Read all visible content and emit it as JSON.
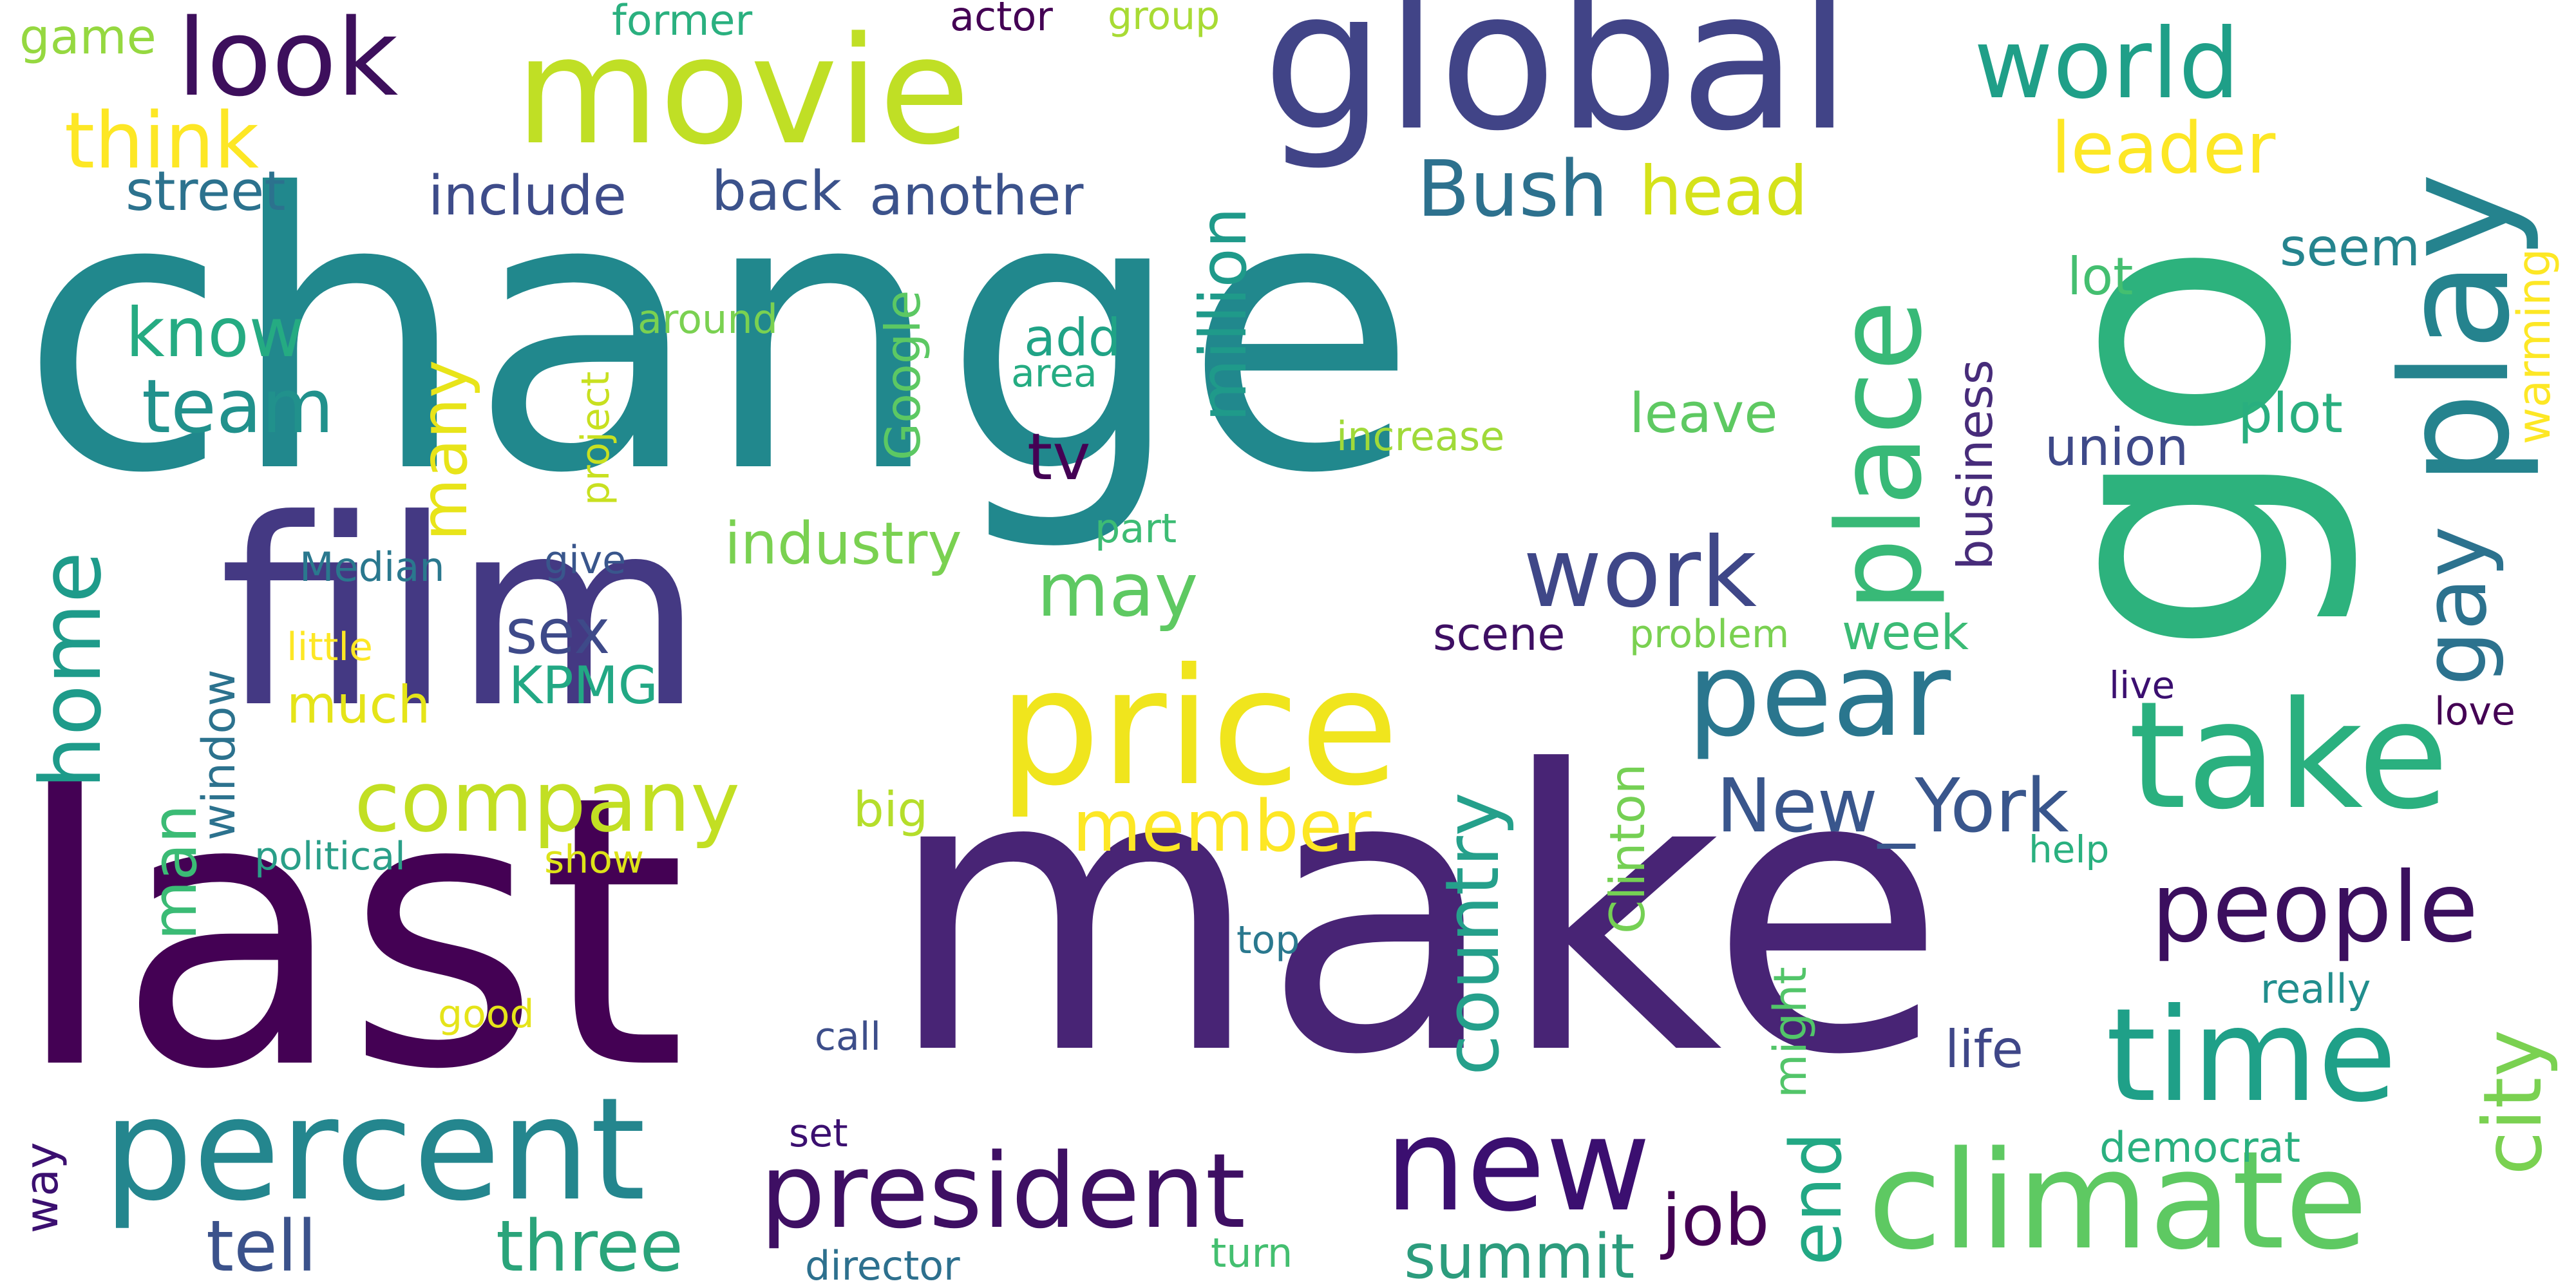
{
  "words": [
    {
      "id": "change",
      "text": "change",
      "color": "#21888d"
    },
    {
      "id": "last",
      "text": "last",
      "color": "#440154"
    },
    {
      "id": "make",
      "text": "make",
      "color": "#482475"
    },
    {
      "id": "go",
      "text": "go",
      "color": "#2db27d"
    },
    {
      "id": "film",
      "text": "film",
      "color": "#443983"
    },
    {
      "id": "global",
      "text": "global",
      "color": "#414487"
    },
    {
      "id": "movie",
      "text": "movie",
      "color": "#c0df25"
    },
    {
      "id": "price",
      "text": "price",
      "color": "#f0e51d"
    },
    {
      "id": "play",
      "text": "play",
      "color": "#25838e"
    },
    {
      "id": "take",
      "text": "take",
      "color": "#2ab07f"
    },
    {
      "id": "percent",
      "text": "percent",
      "color": "#24868e"
    },
    {
      "id": "climate",
      "text": "climate",
      "color": "#5ec962"
    },
    {
      "id": "new",
      "text": "new",
      "color": "#3b0f70"
    },
    {
      "id": "time",
      "text": "time",
      "color": "#1fa088"
    },
    {
      "id": "president",
      "text": "president",
      "color": "#3e0f63"
    },
    {
      "id": "pear",
      "text": "pear",
      "color": "#2a768e"
    },
    {
      "id": "place",
      "text": "place",
      "color": "#38b977"
    },
    {
      "id": "look",
      "text": "look",
      "color": "#3d0f5c"
    },
    {
      "id": "world",
      "text": "world",
      "color": "#1f9f88"
    },
    {
      "id": "work",
      "text": "work",
      "color": "#3f4788"
    },
    {
      "id": "people",
      "text": "people",
      "color": "#3b0f5e"
    },
    {
      "id": "gay",
      "text": "gay",
      "color": "#2c728e"
    },
    {
      "id": "city",
      "text": "city",
      "color": "#7ad151"
    },
    {
      "id": "company",
      "text": "company",
      "color": "#c2df23"
    },
    {
      "id": "home",
      "text": "home",
      "color": "#1e9b8a"
    },
    {
      "id": "new_york",
      "text": "New_York",
      "color": "#39568c"
    },
    {
      "id": "country",
      "text": "country",
      "color": "#25a08b"
    },
    {
      "id": "member",
      "text": "member",
      "color": "#fde725"
    },
    {
      "id": "three",
      "text": "three",
      "color": "#2aa47a"
    },
    {
      "id": "tell",
      "text": "tell",
      "color": "#3b528b"
    },
    {
      "id": "job",
      "text": "job",
      "color": "#440154"
    },
    {
      "id": "end",
      "text": "end",
      "color": "#22a884"
    },
    {
      "id": "summit",
      "text": "summit",
      "color": "#2c9c7d"
    },
    {
      "id": "think",
      "text": "think",
      "color": "#fde725"
    },
    {
      "id": "bush",
      "text": "Bush",
      "color": "#2d718e"
    },
    {
      "id": "head",
      "text": "head",
      "color": "#d5e21a"
    },
    {
      "id": "leader",
      "text": "leader",
      "color": "#fde725"
    },
    {
      "id": "million",
      "text": "million",
      "color": "#1f9a8a"
    },
    {
      "id": "may",
      "text": "may",
      "color": "#5ec962"
    },
    {
      "id": "team",
      "text": "team",
      "color": "#21918c"
    },
    {
      "id": "know",
      "text": "know",
      "color": "#25ab82"
    },
    {
      "id": "many",
      "text": "many",
      "color": "#e8e419"
    },
    {
      "id": "man",
      "text": "man",
      "color": "#3bbb75"
    },
    {
      "id": "sex",
      "text": "sex",
      "color": "#3e4a89"
    },
    {
      "id": "kpmg",
      "text": "KPMG",
      "color": "#22a884"
    },
    {
      "id": "much",
      "text": "much",
      "color": "#e5e419"
    },
    {
      "id": "industry",
      "text": "industry",
      "color": "#7ad151"
    },
    {
      "id": "tv",
      "text": "tv",
      "color": "#440154"
    },
    {
      "id": "street",
      "text": "street",
      "color": "#2c728e"
    },
    {
      "id": "include",
      "text": "include",
      "color": "#3e4c8a"
    },
    {
      "id": "back",
      "text": "back",
      "color": "#3b528b"
    },
    {
      "id": "another",
      "text": "another",
      "color": "#3b528b"
    },
    {
      "id": "seem",
      "text": "seem",
      "color": "#25848e"
    },
    {
      "id": "lot",
      "text": "lot",
      "color": "#44bf70"
    },
    {
      "id": "warming",
      "text": "warming",
      "color": "#fde725"
    },
    {
      "id": "plot",
      "text": "plot",
      "color": "#29af7f"
    },
    {
      "id": "union",
      "text": "union",
      "color": "#3e4989"
    },
    {
      "id": "leave",
      "text": "leave",
      "color": "#5ec962"
    },
    {
      "id": "business",
      "text": "business",
      "color": "#472c7a"
    },
    {
      "id": "google",
      "text": "Google",
      "color": "#5cc863"
    },
    {
      "id": "add",
      "text": "add",
      "color": "#20a386"
    },
    {
      "id": "area",
      "text": "area",
      "color": "#25ac82"
    },
    {
      "id": "increase",
      "text": "increase",
      "color": "#a0da39"
    },
    {
      "id": "scene",
      "text": "scene",
      "color": "#3e0f63"
    },
    {
      "id": "problem",
      "text": "problem",
      "color": "#7ad151"
    },
    {
      "id": "week",
      "text": "week",
      "color": "#3bbb75"
    },
    {
      "id": "clinton",
      "text": "Clinton",
      "color": "#75d054"
    },
    {
      "id": "big",
      "text": "big",
      "color": "#b5de2b"
    },
    {
      "id": "window",
      "text": "window",
      "color": "#2c728e"
    },
    {
      "id": "political",
      "text": "political",
      "color": "#2a9f88"
    },
    {
      "id": "show",
      "text": "show",
      "color": "#dde318"
    },
    {
      "id": "median",
      "text": "Median",
      "color": "#2a788e"
    },
    {
      "id": "give",
      "text": "give",
      "color": "#39568c"
    },
    {
      "id": "little",
      "text": "little",
      "color": "#fde725"
    },
    {
      "id": "part",
      "text": "part",
      "color": "#3dbc74"
    },
    {
      "id": "project",
      "text": "project",
      "color": "#c8e020"
    },
    {
      "id": "around",
      "text": "around",
      "color": "#7ad151"
    },
    {
      "id": "game",
      "text": "game",
      "color": "#95d840"
    },
    {
      "id": "former",
      "text": "former",
      "color": "#2ab07f"
    },
    {
      "id": "actor",
      "text": "actor",
      "color": "#440154"
    },
    {
      "id": "group",
      "text": "group",
      "color": "#a8db34"
    },
    {
      "id": "live",
      "text": "live",
      "color": "#3b0f70"
    },
    {
      "id": "love",
      "text": "love",
      "color": "#440154"
    },
    {
      "id": "help",
      "text": "help",
      "color": "#2ab07f"
    },
    {
      "id": "might",
      "text": "might",
      "color": "#52c569"
    },
    {
      "id": "really",
      "text": "really",
      "color": "#218e8d"
    },
    {
      "id": "life",
      "text": "life",
      "color": "#3f4788"
    },
    {
      "id": "democrat",
      "text": "democrat",
      "color": "#2ab07f"
    },
    {
      "id": "top",
      "text": "top",
      "color": "#2a788e"
    },
    {
      "id": "call",
      "text": "call",
      "color": "#3d4e8a"
    },
    {
      "id": "set",
      "text": "set",
      "color": "#3b0f70"
    },
    {
      "id": "good",
      "text": "good",
      "color": "#e5e419"
    },
    {
      "id": "way",
      "text": "way",
      "color": "#3b0f70"
    },
    {
      "id": "director",
      "text": "director",
      "color": "#2d708e"
    },
    {
      "id": "turn",
      "text": "turn",
      "color": "#44bf70"
    }
  ]
}
